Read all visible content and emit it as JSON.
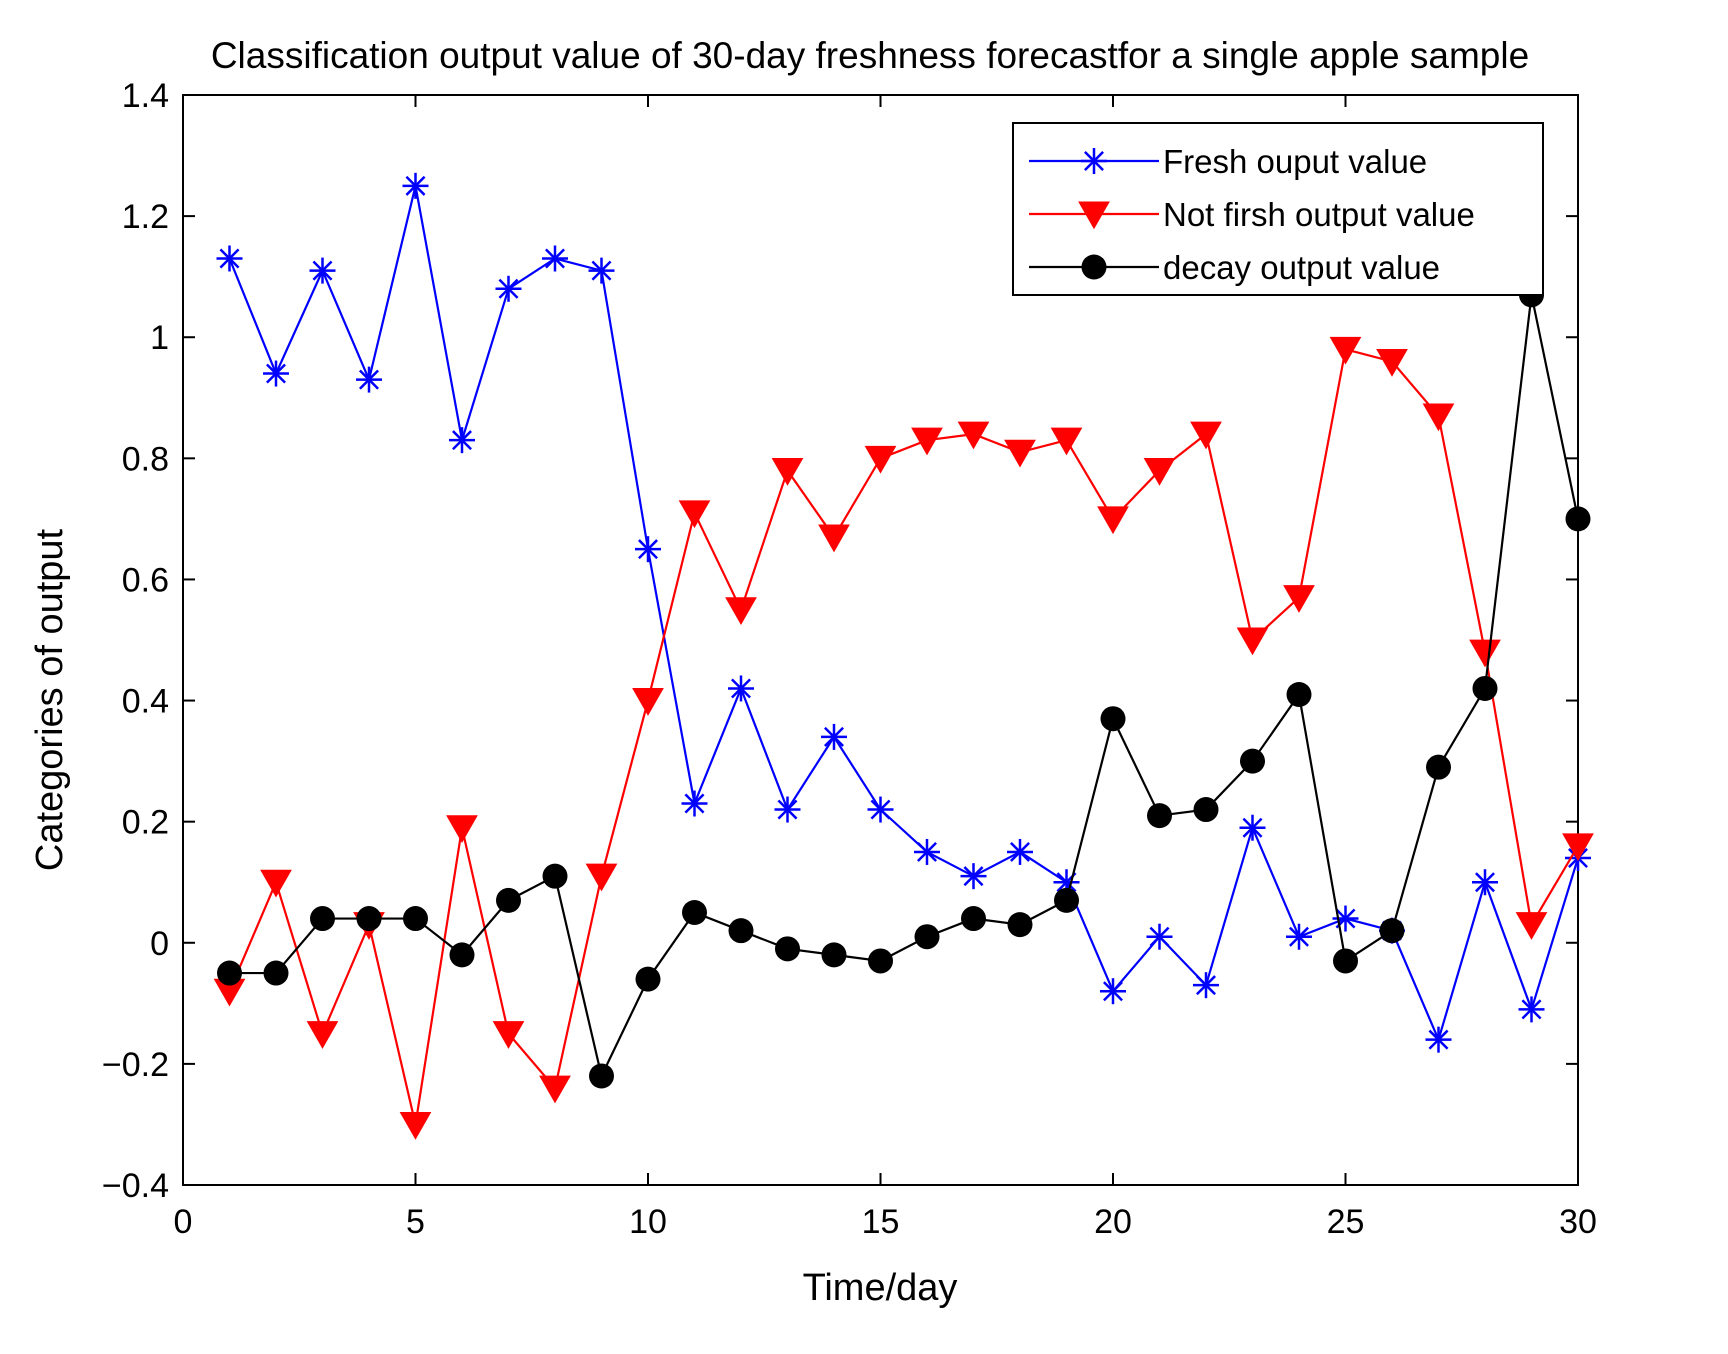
{
  "chart_data": {
    "type": "line",
    "title": "Classification output value of 30-day freshness forecastfor a single apple sample",
    "xlabel": "Time/day",
    "ylabel": "Categories of output",
    "xlim": [
      0,
      30
    ],
    "ylim": [
      -0.4,
      1.4
    ],
    "xticks": [
      0,
      5,
      10,
      15,
      20,
      25,
      30
    ],
    "yticks": [
      -0.4,
      -0.2,
      0,
      0.2,
      0.4,
      0.6,
      0.8,
      1,
      1.2,
      1.4
    ],
    "xtick_labels": [
      "0",
      "5",
      "10",
      "15",
      "20",
      "25",
      "30"
    ],
    "ytick_labels": [
      "−0.4",
      "−0.2",
      "0",
      "0.2",
      "0.4",
      "0.6",
      "0.8",
      "1",
      "1.2",
      "1.4"
    ],
    "grid": false,
    "legend_position": "top-right",
    "x": [
      1,
      2,
      3,
      4,
      5,
      6,
      7,
      8,
      9,
      10,
      11,
      12,
      13,
      14,
      15,
      16,
      17,
      18,
      19,
      20,
      21,
      22,
      23,
      24,
      25,
      26,
      27,
      28,
      29,
      30
    ],
    "series": [
      {
        "name": "Fresh ouput value",
        "color": "#0000ff",
        "marker": "asterisk",
        "values": [
          1.13,
          0.94,
          1.11,
          0.93,
          1.25,
          0.83,
          1.08,
          1.13,
          1.11,
          0.65,
          0.23,
          0.42,
          0.22,
          0.34,
          0.22,
          0.15,
          0.11,
          0.15,
          0.1,
          -0.08,
          0.01,
          -0.07,
          0.19,
          0.01,
          0.04,
          0.02,
          -0.16,
          0.1,
          -0.11,
          0.14
        ]
      },
      {
        "name": "Not firsh output value",
        "color": "#ff0000",
        "marker": "triangle-down",
        "values": [
          -0.08,
          0.1,
          -0.15,
          0.03,
          -0.3,
          0.19,
          -0.15,
          -0.24,
          0.11,
          0.4,
          0.71,
          0.55,
          0.78,
          0.67,
          0.8,
          0.83,
          0.84,
          0.81,
          0.83,
          0.7,
          0.78,
          0.84,
          0.5,
          0.57,
          0.98,
          0.96,
          0.87,
          0.48,
          0.03,
          0.16
        ]
      },
      {
        "name": "decay output value",
        "color": "#000000",
        "marker": "circle",
        "values": [
          -0.05,
          -0.05,
          0.04,
          0.04,
          0.04,
          -0.02,
          0.07,
          0.11,
          -0.22,
          -0.06,
          0.05,
          0.02,
          -0.01,
          -0.02,
          -0.03,
          0.01,
          0.04,
          0.03,
          0.07,
          0.37,
          0.21,
          0.22,
          0.3,
          0.41,
          -0.03,
          0.02,
          0.29,
          0.42,
          1.07,
          0.7
        ]
      }
    ]
  }
}
